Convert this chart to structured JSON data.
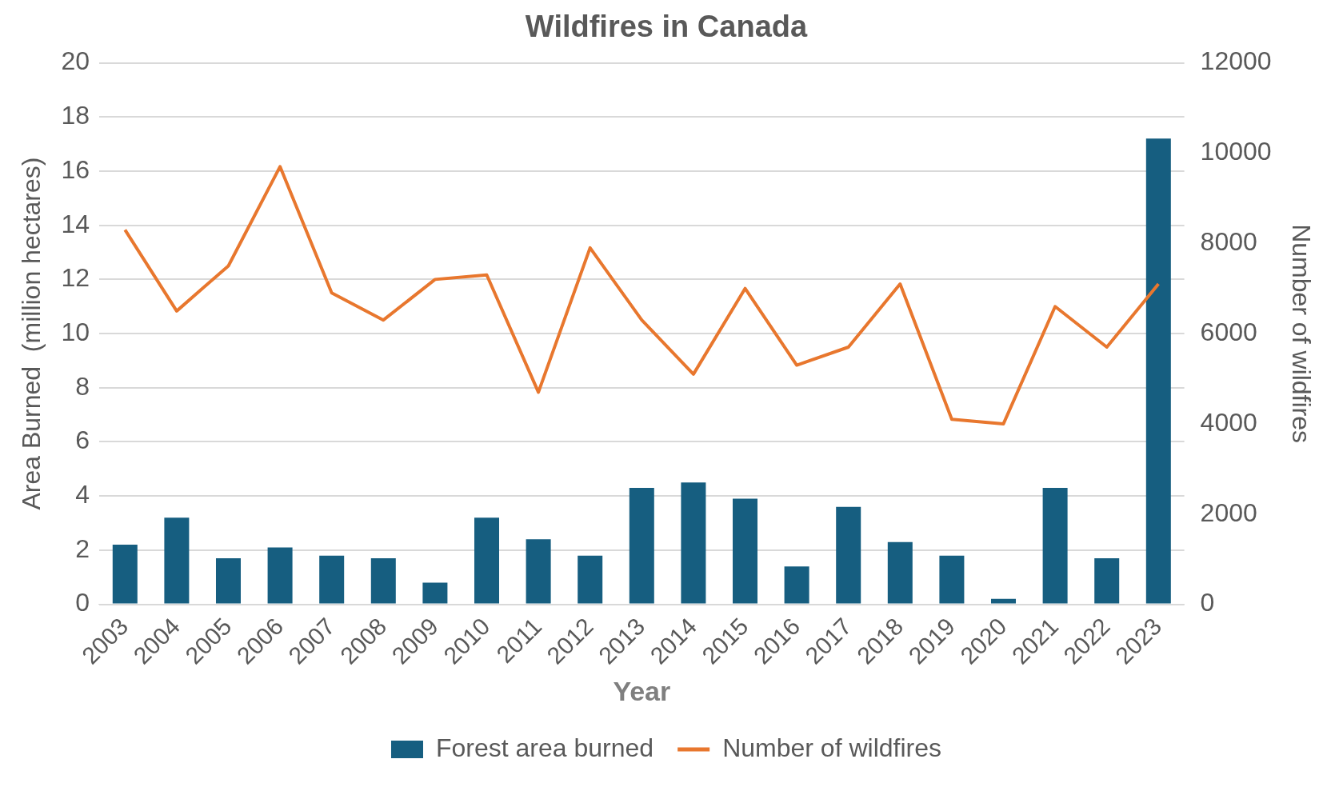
{
  "chart_data": {
    "type": "bar",
    "title": "Wildfires in Canada",
    "xlabel": "Year",
    "ylabel": "Area Burned  (million hectares)",
    "y2label": "Number of wildfires",
    "categories": [
      "2003",
      "2004",
      "2005",
      "2006",
      "2007",
      "2008",
      "2009",
      "2010",
      "2011",
      "2012",
      "2013",
      "2014",
      "2015",
      "2016",
      "2017",
      "2018",
      "2019",
      "2020",
      "2021",
      "2022",
      "2023"
    ],
    "series": [
      {
        "name": "Forest area burned",
        "color": "#165e80",
        "values": [
          2.2,
          3.2,
          1.7,
          2.1,
          1.8,
          1.7,
          0.8,
          3.2,
          2.4,
          1.8,
          4.3,
          4.5,
          3.9,
          1.4,
          3.6,
          2.3,
          1.8,
          0.2,
          4.3,
          1.7,
          17.2
        ]
      },
      {
        "name": "Number of wildfires",
        "type": "line",
        "axis": "y2",
        "color": "#e8772e",
        "values": [
          8300,
          6500,
          7500,
          9700,
          6900,
          6300,
          7200,
          7300,
          4700,
          7900,
          6300,
          5100,
          7000,
          5300,
          5700,
          7100,
          4100,
          4000,
          6600,
          5700,
          7100
        ]
      }
    ],
    "ylim": [
      0,
      20
    ],
    "yticks": [
      0,
      2,
      4,
      6,
      8,
      10,
      12,
      14,
      16,
      18,
      20
    ],
    "y2lim": [
      0,
      12000
    ],
    "y2ticks": [
      0,
      2000,
      4000,
      6000,
      8000,
      10000,
      12000
    ],
    "grid": "y",
    "legend": "bottom",
    "marker": "none",
    "line_style": "solid"
  }
}
